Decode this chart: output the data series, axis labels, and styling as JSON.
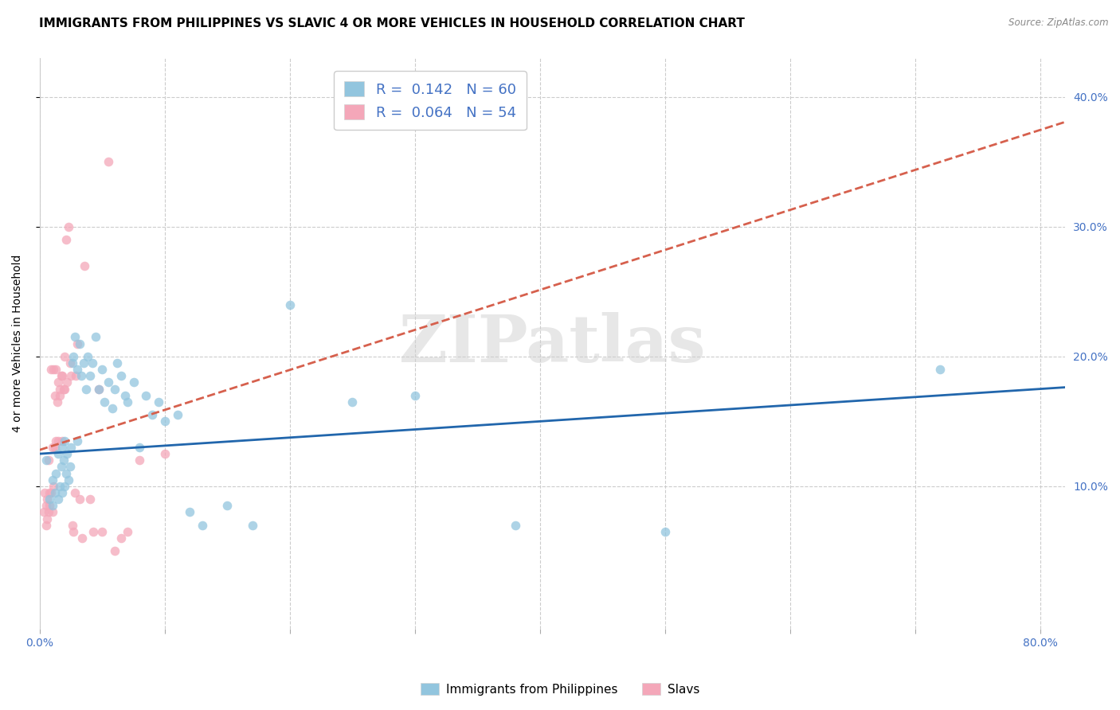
{
  "title": "IMMIGRANTS FROM PHILIPPINES VS SLAVIC 4 OR MORE VEHICLES IN HOUSEHOLD CORRELATION CHART",
  "source": "Source: ZipAtlas.com",
  "ylabel": "4 or more Vehicles in Household",
  "xlim": [
    0.0,
    0.82
  ],
  "ylim": [
    -0.01,
    0.43
  ],
  "watermark": "ZIPatlas",
  "legend_r_blue": "0.142",
  "legend_n_blue": "60",
  "legend_r_pink": "0.064",
  "legend_n_pink": "54",
  "legend_label_blue": "Immigrants from Philippines",
  "legend_label_pink": "Slavs",
  "blue_color": "#92c5de",
  "pink_color": "#f4a7b9",
  "trend_blue_color": "#2166ac",
  "trend_pink_color": "#d6604d",
  "blue_scatter_x": [
    0.005,
    0.008,
    0.01,
    0.01,
    0.012,
    0.013,
    0.015,
    0.015,
    0.016,
    0.017,
    0.018,
    0.018,
    0.019,
    0.02,
    0.02,
    0.021,
    0.022,
    0.023,
    0.024,
    0.025,
    0.026,
    0.027,
    0.028,
    0.03,
    0.03,
    0.032,
    0.033,
    0.035,
    0.037,
    0.038,
    0.04,
    0.042,
    0.045,
    0.047,
    0.05,
    0.052,
    0.055,
    0.058,
    0.06,
    0.062,
    0.065,
    0.068,
    0.07,
    0.075,
    0.08,
    0.085,
    0.09,
    0.095,
    0.1,
    0.11,
    0.12,
    0.13,
    0.15,
    0.17,
    0.2,
    0.25,
    0.3,
    0.38,
    0.5,
    0.72
  ],
  "blue_scatter_y": [
    0.12,
    0.09,
    0.085,
    0.105,
    0.095,
    0.11,
    0.09,
    0.125,
    0.1,
    0.115,
    0.13,
    0.095,
    0.12,
    0.1,
    0.135,
    0.11,
    0.125,
    0.105,
    0.115,
    0.13,
    0.195,
    0.2,
    0.215,
    0.19,
    0.135,
    0.21,
    0.185,
    0.195,
    0.175,
    0.2,
    0.185,
    0.195,
    0.215,
    0.175,
    0.19,
    0.165,
    0.18,
    0.16,
    0.175,
    0.195,
    0.185,
    0.17,
    0.165,
    0.18,
    0.13,
    0.17,
    0.155,
    0.165,
    0.15,
    0.155,
    0.08,
    0.07,
    0.085,
    0.07,
    0.24,
    0.165,
    0.17,
    0.07,
    0.065,
    0.19
  ],
  "pink_scatter_x": [
    0.003,
    0.004,
    0.005,
    0.005,
    0.006,
    0.006,
    0.007,
    0.007,
    0.008,
    0.008,
    0.009,
    0.009,
    0.01,
    0.01,
    0.011,
    0.011,
    0.012,
    0.012,
    0.013,
    0.013,
    0.014,
    0.015,
    0.015,
    0.016,
    0.016,
    0.017,
    0.018,
    0.018,
    0.019,
    0.02,
    0.02,
    0.021,
    0.022,
    0.023,
    0.024,
    0.025,
    0.026,
    0.027,
    0.028,
    0.029,
    0.03,
    0.032,
    0.034,
    0.036,
    0.04,
    0.043,
    0.047,
    0.05,
    0.055,
    0.06,
    0.065,
    0.07,
    0.08,
    0.1
  ],
  "pink_scatter_y": [
    0.08,
    0.095,
    0.07,
    0.085,
    0.075,
    0.09,
    0.08,
    0.12,
    0.085,
    0.095,
    0.095,
    0.19,
    0.08,
    0.13,
    0.1,
    0.19,
    0.13,
    0.17,
    0.135,
    0.19,
    0.165,
    0.18,
    0.135,
    0.17,
    0.175,
    0.185,
    0.135,
    0.185,
    0.175,
    0.175,
    0.2,
    0.29,
    0.18,
    0.3,
    0.195,
    0.185,
    0.07,
    0.065,
    0.095,
    0.185,
    0.21,
    0.09,
    0.06,
    0.27,
    0.09,
    0.065,
    0.175,
    0.065,
    0.35,
    0.05,
    0.06,
    0.065,
    0.12,
    0.125
  ],
  "background_color": "#ffffff",
  "grid_color": "#cccccc",
  "title_fontsize": 11,
  "axis_label_fontsize": 10,
  "tick_fontsize": 10,
  "marker_size": 70
}
